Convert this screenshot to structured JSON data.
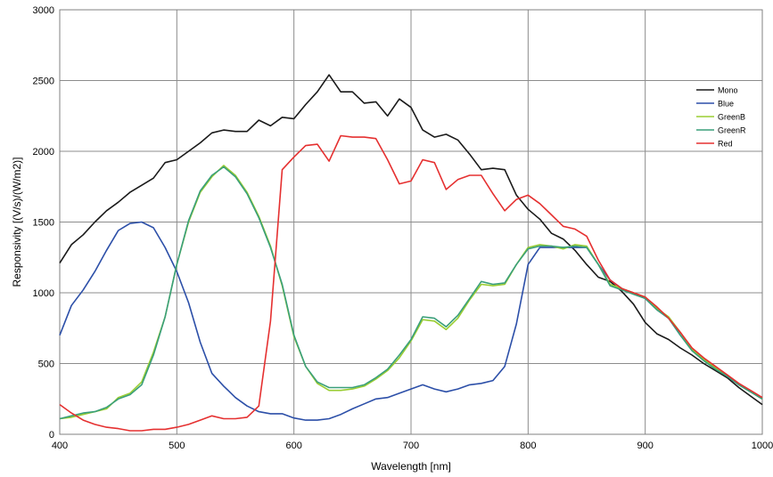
{
  "chart_data": {
    "type": "line",
    "title": "",
    "xlabel": "Wavelength [nm]",
    "ylabel": "Responsivity [(V/s)/(W/m2)]",
    "xlim": [
      400,
      1000
    ],
    "ylim": [
      0,
      3000
    ],
    "x_ticks": [
      400,
      500,
      600,
      700,
      800,
      900,
      1000
    ],
    "y_ticks": [
      0,
      500,
      1000,
      1500,
      2000,
      2500,
      3000
    ],
    "x_tick_labels": [
      "400",
      "500",
      "600",
      "700",
      "800",
      "900",
      "1000"
    ],
    "y_tick_labels": [
      "0",
      "500",
      "1000",
      "1500",
      "2000",
      "2500",
      "3000"
    ],
    "grid": true,
    "legend_position": "top-right",
    "x": [
      400,
      410,
      420,
      430,
      440,
      450,
      460,
      470,
      480,
      490,
      500,
      510,
      520,
      530,
      540,
      550,
      560,
      570,
      580,
      590,
      600,
      610,
      620,
      630,
      640,
      650,
      660,
      670,
      680,
      690,
      700,
      710,
      720,
      730,
      740,
      750,
      760,
      770,
      780,
      790,
      800,
      810,
      820,
      830,
      840,
      850,
      860,
      870,
      880,
      890,
      900,
      910,
      920,
      930,
      940,
      950,
      960,
      970,
      980,
      990,
      1000
    ],
    "series": [
      {
        "name": "Mono",
        "color": "#1a1a1a",
        "values": [
          1210,
          1340,
          1410,
          1500,
          1580,
          1640,
          1710,
          1760,
          1810,
          1920,
          1940,
          2000,
          2060,
          2130,
          2150,
          2140,
          2140,
          2220,
          2180,
          2240,
          2230,
          2330,
          2420,
          2540,
          2420,
          2420,
          2340,
          2350,
          2250,
          2370,
          2310,
          2150,
          2100,
          2120,
          2080,
          1980,
          1870,
          1880,
          1870,
          1690,
          1590,
          1520,
          1420,
          1380,
          1300,
          1200,
          1110,
          1080,
          1010,
          920,
          790,
          710,
          670,
          610,
          560,
          500,
          450,
          400,
          330,
          270,
          210
        ]
      },
      {
        "name": "Blue",
        "color": "#2c4fa8",
        "values": [
          700,
          910,
          1020,
          1150,
          1300,
          1440,
          1490,
          1500,
          1460,
          1320,
          1150,
          930,
          650,
          430,
          340,
          260,
          200,
          160,
          145,
          145,
          115,
          100,
          100,
          110,
          140,
          180,
          215,
          250,
          260,
          290,
          320,
          350,
          320,
          300,
          320,
          350,
          360,
          380,
          480,
          780,
          1200,
          1320,
          1320,
          1320,
          1320,
          1320,
          1200,
          1090,
          1030,
          1000,
          960,
          880,
          820,
          700,
          600,
          530,
          470,
          410,
          350,
          300,
          250
        ]
      },
      {
        "name": "GreenB",
        "color": "#9acd32",
        "values": [
          110,
          120,
          140,
          160,
          180,
          260,
          290,
          370,
          580,
          830,
          1200,
          1500,
          1710,
          1820,
          1900,
          1830,
          1710,
          1540,
          1330,
          1050,
          690,
          480,
          360,
          310,
          310,
          320,
          340,
          390,
          450,
          540,
          660,
          810,
          800,
          740,
          820,
          950,
          1060,
          1050,
          1060,
          1200,
          1320,
          1340,
          1330,
          1310,
          1340,
          1330,
          1200,
          1060,
          1030,
          1000,
          970,
          890,
          830,
          720,
          600,
          530,
          470,
          420,
          350,
          300,
          250
        ]
      },
      {
        "name": "GreenR",
        "color": "#3a9f7a",
        "values": [
          110,
          130,
          150,
          160,
          190,
          250,
          280,
          350,
          560,
          830,
          1200,
          1510,
          1720,
          1830,
          1890,
          1820,
          1700,
          1530,
          1320,
          1060,
          700,
          480,
          370,
          330,
          330,
          330,
          350,
          400,
          460,
          560,
          670,
          830,
          820,
          760,
          840,
          960,
          1080,
          1060,
          1070,
          1200,
          1310,
          1330,
          1330,
          1320,
          1330,
          1320,
          1200,
          1050,
          1020,
          990,
          960,
          880,
          820,
          700,
          590,
          520,
          460,
          410,
          350,
          300,
          250
        ]
      },
      {
        "name": "Red",
        "color": "#e53030",
        "values": [
          210,
          150,
          100,
          70,
          50,
          40,
          25,
          25,
          35,
          35,
          50,
          70,
          100,
          130,
          110,
          110,
          120,
          200,
          800,
          1870,
          1960,
          2040,
          2050,
          1930,
          2110,
          2100,
          2100,
          2090,
          1940,
          1770,
          1790,
          1940,
          1920,
          1730,
          1800,
          1830,
          1830,
          1700,
          1580,
          1660,
          1690,
          1630,
          1550,
          1470,
          1450,
          1400,
          1230,
          1090,
          1030,
          1000,
          970,
          900,
          820,
          720,
          610,
          540,
          480,
          420,
          360,
          310,
          260
        ]
      }
    ]
  }
}
